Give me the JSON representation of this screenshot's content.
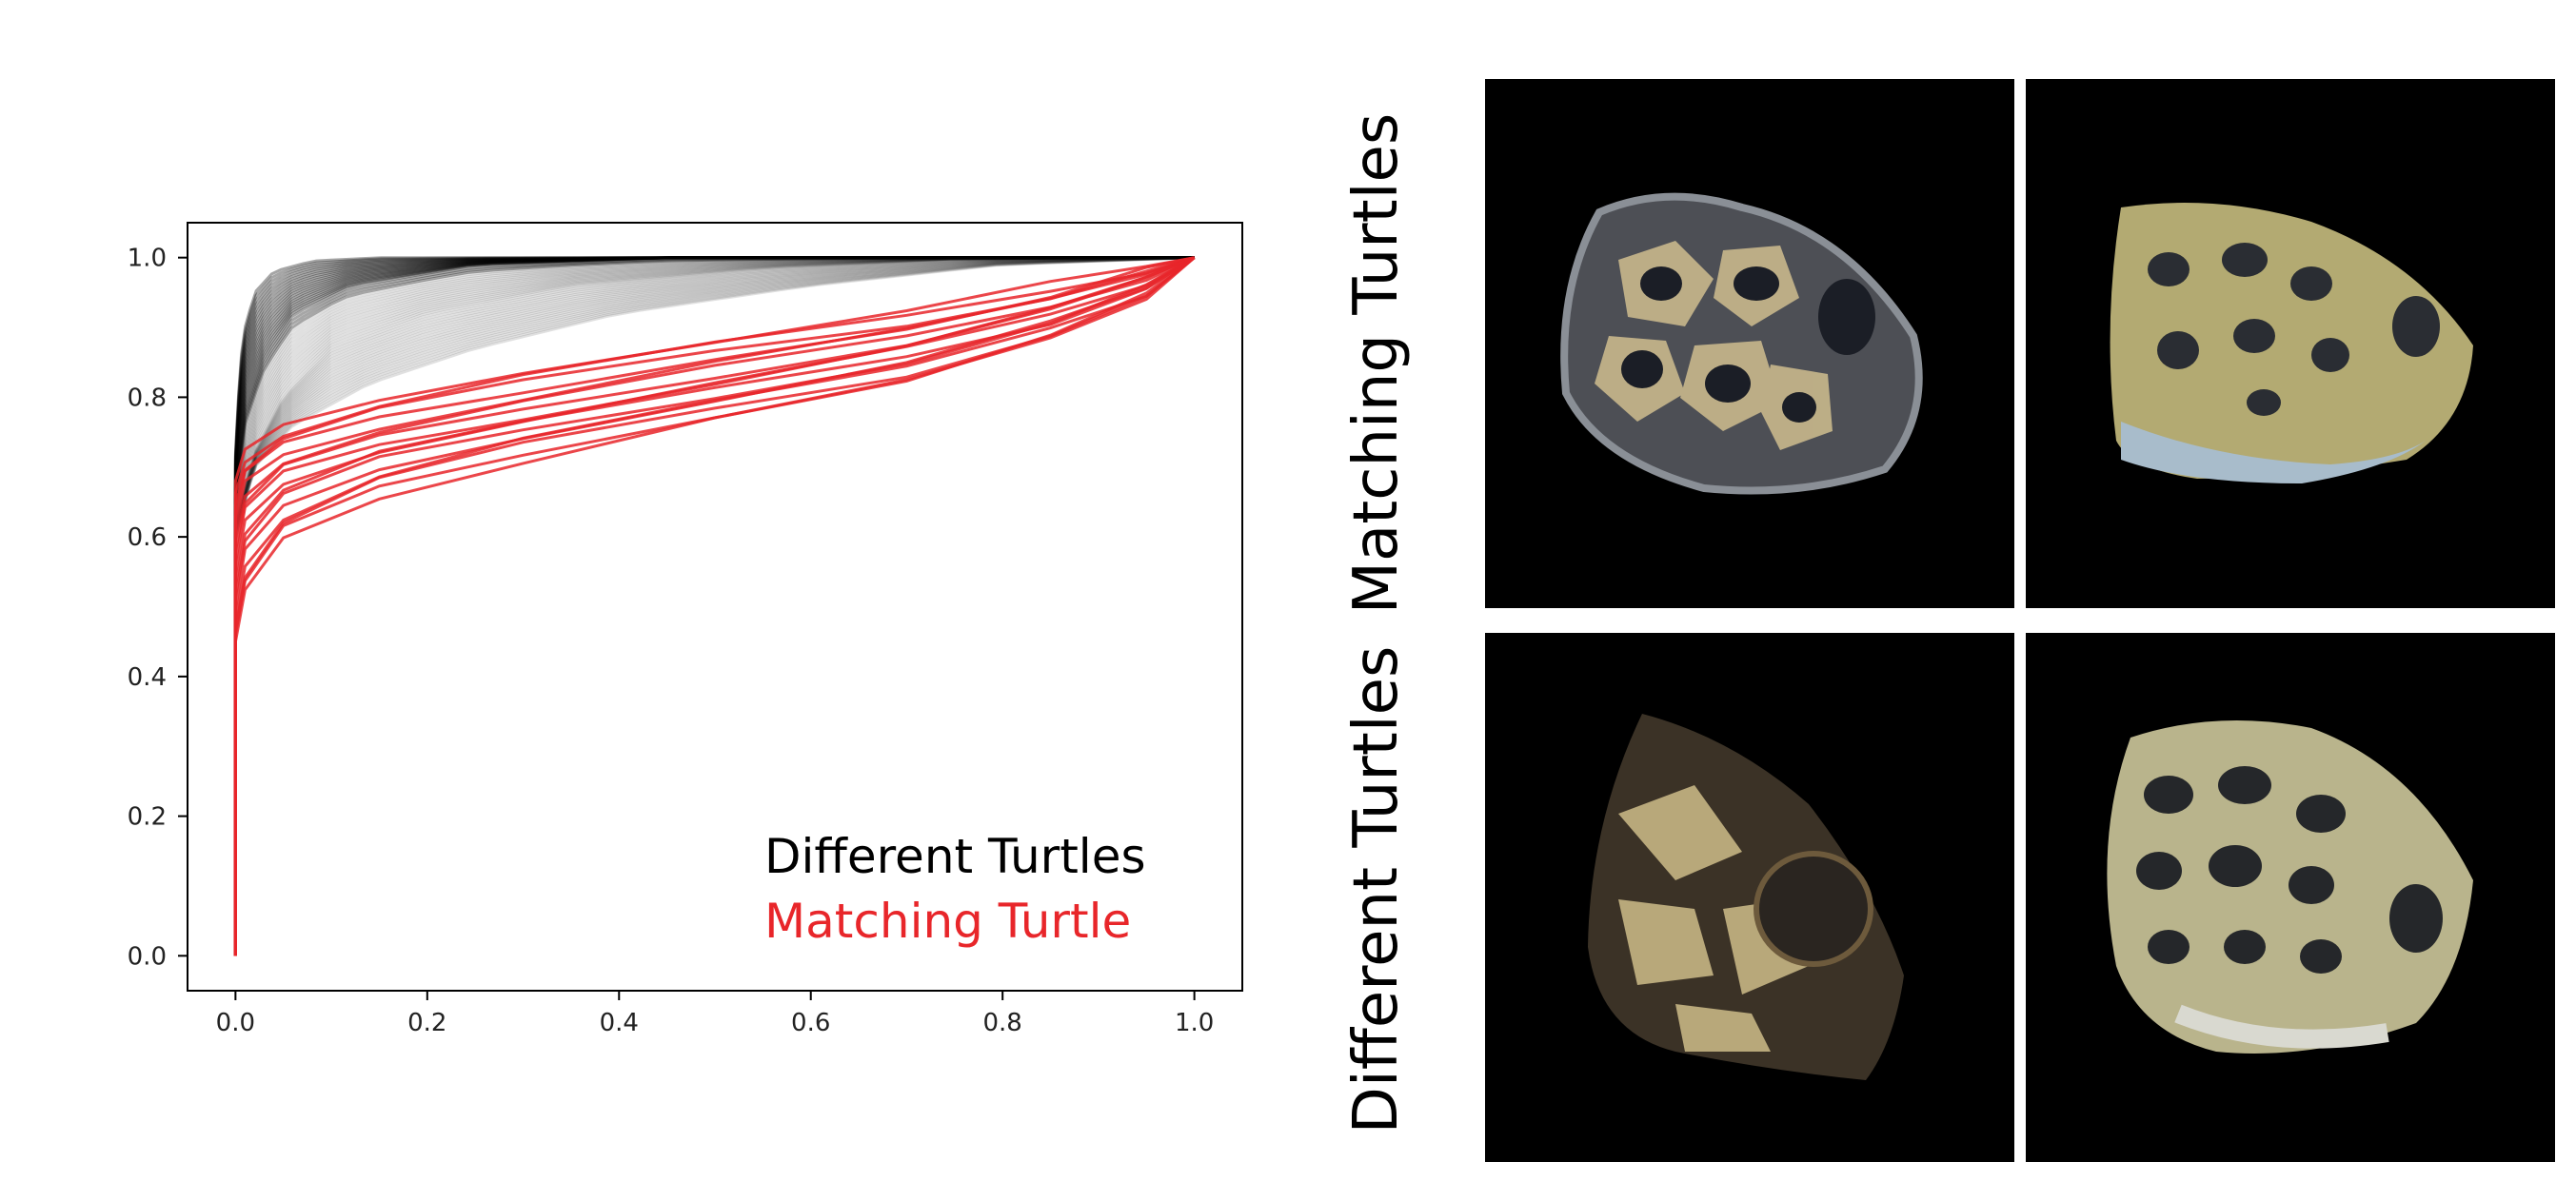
{
  "chart_data": {
    "type": "line",
    "title": "",
    "xlabel": "",
    "ylabel": "",
    "xlim": [
      -0.05,
      1.05
    ],
    "ylim": [
      -0.05,
      1.05
    ],
    "xticks": [
      "0.0",
      "0.2",
      "0.4",
      "0.6",
      "0.8",
      "1.0"
    ],
    "yticks": [
      "0.0",
      "0.2",
      "0.4",
      "0.6",
      "0.8",
      "1.0"
    ],
    "grid": false,
    "legend_position": "lower-right",
    "series": [
      {
        "name": "Different Turtles",
        "color": "#000000",
        "count": "many",
        "representative_curves": [
          {
            "x": [
              0,
              0,
              0.005,
              0.01,
              0.02,
              0.04,
              0.08,
              0.15,
              1.0
            ],
            "y": [
              0,
              0.72,
              0.85,
              0.9,
              0.95,
              0.98,
              0.995,
              1.0,
              1.0
            ]
          },
          {
            "x": [
              0,
              0,
              0.01,
              0.03,
              0.06,
              0.12,
              0.25,
              0.45,
              1.0
            ],
            "y": [
              0,
              0.66,
              0.78,
              0.86,
              0.92,
              0.96,
              0.99,
              1.0,
              1.0
            ]
          },
          {
            "x": [
              0,
              0,
              0.02,
              0.05,
              0.1,
              0.2,
              0.35,
              0.55,
              0.75,
              1.0
            ],
            "y": [
              0,
              0.62,
              0.72,
              0.8,
              0.87,
              0.92,
              0.96,
              0.985,
              0.998,
              1.0
            ]
          },
          {
            "x": [
              0,
              0,
              0.02,
              0.06,
              0.14,
              0.25,
              0.4,
              0.6,
              0.8,
              1.0
            ],
            "y": [
              0,
              0.6,
              0.7,
              0.76,
              0.82,
              0.87,
              0.92,
              0.96,
              0.99,
              1.0
            ]
          }
        ]
      },
      {
        "name": "Matching Turtle",
        "color": "#e8262a",
        "count": 16,
        "representative_curves": [
          {
            "x": [
              0,
              0,
              0.01,
              0.05,
              0.15,
              0.3,
              0.5,
              0.7,
              0.85,
              0.95,
              1.0
            ],
            "y": [
              0,
              0.68,
              0.72,
              0.76,
              0.8,
              0.84,
              0.88,
              0.92,
              0.96,
              0.985,
              1.0
            ]
          },
          {
            "x": [
              0,
              0,
              0.01,
              0.05,
              0.15,
              0.3,
              0.5,
              0.7,
              0.85,
              0.95,
              1.0
            ],
            "y": [
              0,
              0.63,
              0.69,
              0.73,
              0.77,
              0.81,
              0.86,
              0.9,
              0.94,
              0.98,
              1.0
            ]
          },
          {
            "x": [
              0,
              0,
              0.01,
              0.05,
              0.15,
              0.3,
              0.5,
              0.7,
              0.85,
              0.95,
              1.0
            ],
            "y": [
              0,
              0.58,
              0.65,
              0.7,
              0.74,
              0.78,
              0.83,
              0.88,
              0.93,
              0.97,
              1.0
            ]
          },
          {
            "x": [
              0,
              0,
              0.01,
              0.05,
              0.15,
              0.3,
              0.5,
              0.7,
              0.85,
              0.95,
              1.0
            ],
            "y": [
              0,
              0.53,
              0.61,
              0.67,
              0.72,
              0.76,
              0.81,
              0.86,
              0.91,
              0.96,
              1.0
            ]
          },
          {
            "x": [
              0,
              0,
              0.01,
              0.05,
              0.15,
              0.3,
              0.5,
              0.7,
              0.85,
              0.95,
              1.0
            ],
            "y": [
              0,
              0.48,
              0.56,
              0.63,
              0.69,
              0.74,
              0.79,
              0.84,
              0.9,
              0.95,
              1.0
            ]
          },
          {
            "x": [
              0,
              0,
              0.01,
              0.05,
              0.15,
              0.3,
              0.5,
              0.7,
              0.85,
              0.95,
              1.0
            ],
            "y": [
              0,
              0.45,
              0.52,
              0.6,
              0.66,
              0.71,
              0.77,
              0.82,
              0.88,
              0.94,
              1.0
            ]
          }
        ]
      }
    ]
  },
  "legend": {
    "different": "Different Turtles",
    "matching": "Matching Turtle"
  },
  "image_grid": {
    "row_labels": [
      "Matching Turtles",
      "Different Turtles"
    ]
  }
}
